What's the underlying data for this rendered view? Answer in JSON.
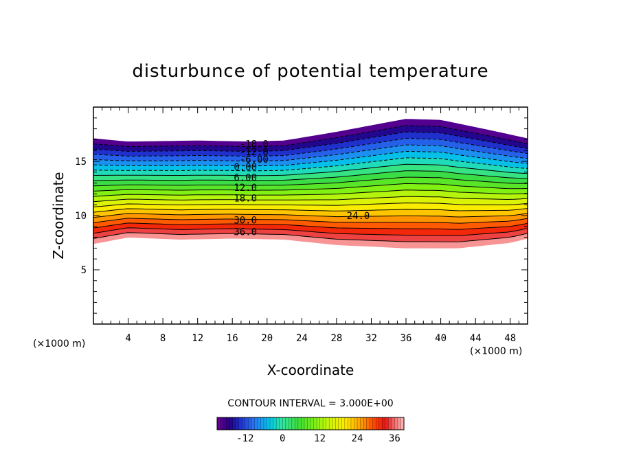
{
  "chart_data": {
    "type": "contour",
    "title": "disturbunce of potential temperature",
    "xlabel": "X-coordinate",
    "ylabel": "Z-coordinate",
    "x_unit": "(×1000 m)",
    "z_unit": "(×1000 m)",
    "xlim": [
      0,
      50
    ],
    "ylim": [
      0,
      20
    ],
    "x_ticks": [
      "4",
      "8",
      "12",
      "16",
      "20",
      "24",
      "28",
      "32",
      "36",
      "40",
      "44",
      "48"
    ],
    "y_ticks": [
      "5",
      "10",
      "15"
    ],
    "contour_interval_text": "CONTOUR INTERVAL = 3.000E+00",
    "contour_interval": 3.0,
    "contour_labels": [
      {
        "text": "-18.0",
        "x": 18.5,
        "z": 16.6
      },
      {
        "text": "-12.0",
        "x": 18.5,
        "z": 15.9
      },
      {
        "text": "-6.00",
        "x": 18.5,
        "z": 15.2
      },
      {
        "text": "0.00",
        "x": 17.5,
        "z": 14.5
      },
      {
        "text": "6.00",
        "x": 17.5,
        "z": 13.5
      },
      {
        "text": "12.0",
        "x": 17.5,
        "z": 12.6
      },
      {
        "text": "18.0",
        "x": 17.5,
        "z": 11.6
      },
      {
        "text": "24.0",
        "x": 30.5,
        "z": 10.0
      },
      {
        "text": "30.0",
        "x": 17.5,
        "z": 9.6
      },
      {
        "text": "36.0",
        "x": 17.5,
        "z": 8.5
      }
    ],
    "field_top_z": [
      [
        0,
        17.1
      ],
      [
        4,
        16.8
      ],
      [
        12,
        16.9
      ],
      [
        18,
        16.8
      ],
      [
        22,
        16.9
      ],
      [
        28,
        17.7
      ],
      [
        36,
        18.9
      ],
      [
        40,
        18.8
      ],
      [
        46,
        17.8
      ],
      [
        50,
        17.1
      ]
    ],
    "field_bottom_z": [
      [
        0,
        7.4
      ],
      [
        4,
        8.0
      ],
      [
        10,
        7.8
      ],
      [
        16,
        7.9
      ],
      [
        22,
        7.8
      ],
      [
        28,
        7.3
      ],
      [
        36,
        7.0
      ],
      [
        42,
        7.0
      ],
      [
        48,
        7.5
      ],
      [
        50,
        7.9
      ]
    ],
    "colorbar": {
      "min": -21,
      "max": 39,
      "ticks": [
        "-12",
        "0",
        "12",
        "24",
        "36"
      ]
    }
  }
}
